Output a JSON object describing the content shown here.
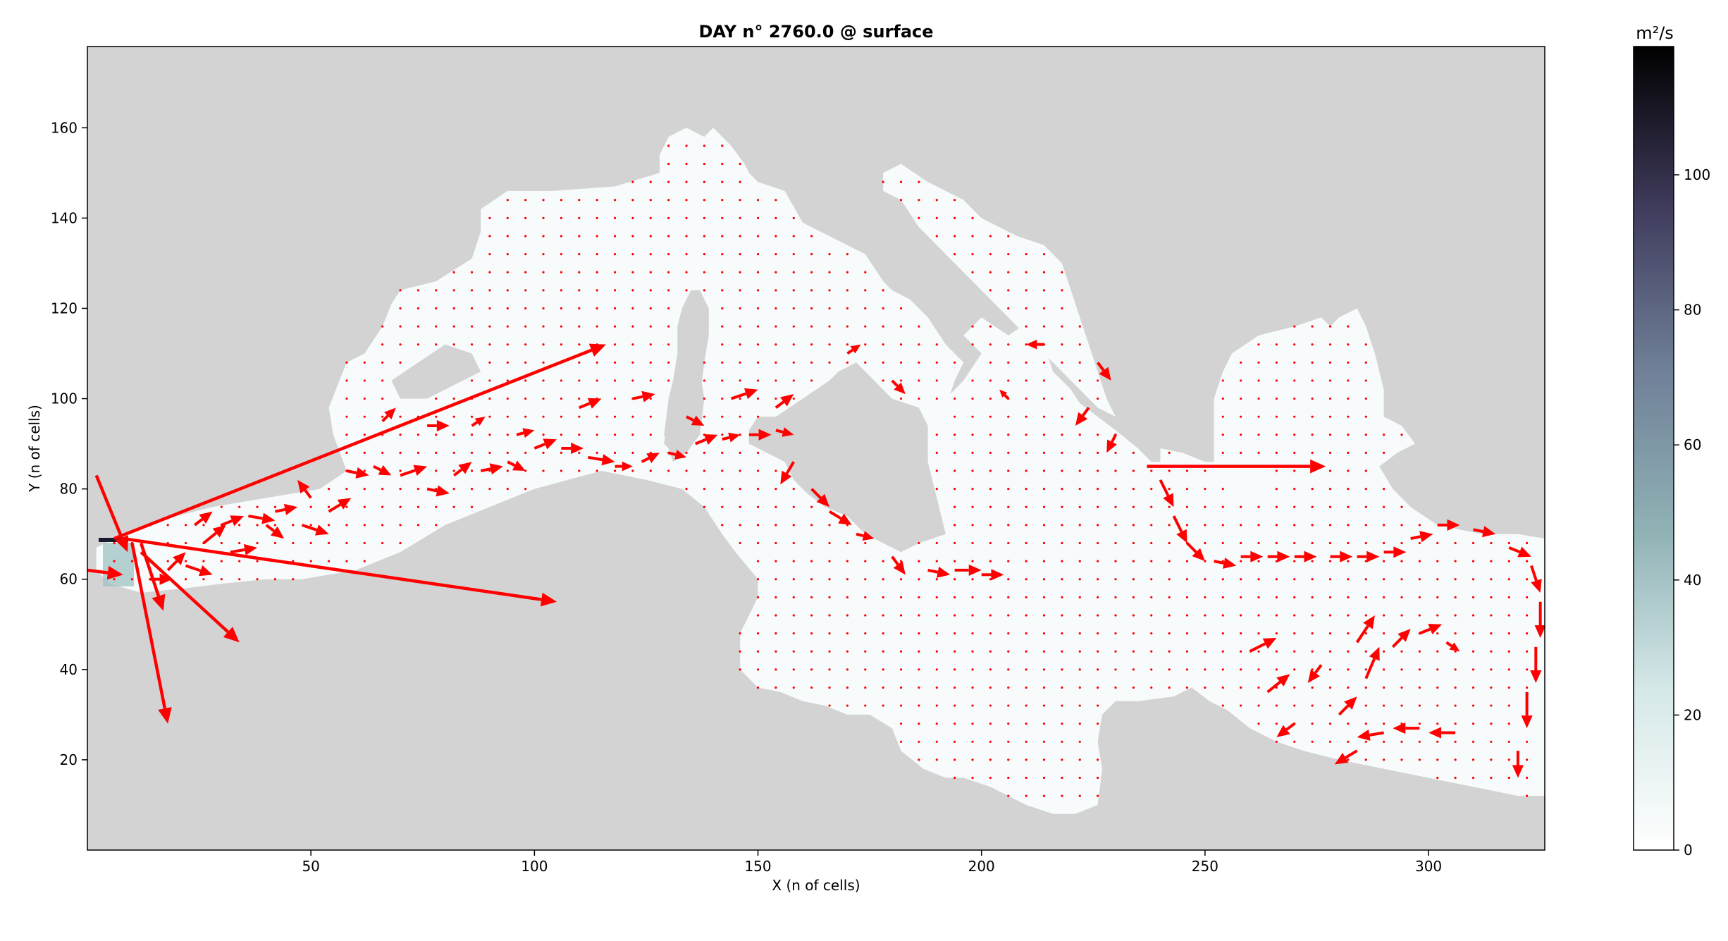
{
  "chart_data": [
    {
      "type": "heatmap",
      "overlay": "quiver",
      "title": "DAY n° 2760.0 @ surface",
      "xlabel": "X (n of cells)",
      "ylabel": "Y (n of cells)",
      "xlim": [
        0,
        326
      ],
      "ylim": [
        0,
        178
      ],
      "xticks": [
        50,
        100,
        150,
        200,
        250,
        300
      ],
      "yticks": [
        20,
        40,
        60,
        80,
        100,
        120,
        140,
        160
      ],
      "land_color": "#d3d3d3",
      "sea_color": "#f7fbfb",
      "arrow_color": "#ff0000",
      "colormap": "bone_r",
      "colorbar": {
        "label": "m²/s",
        "ticks": [
          0,
          20,
          40,
          60,
          80,
          100
        ],
        "range": [
          0,
          119
        ]
      },
      "grid": false,
      "sea_outline": [
        [
          2,
          67
        ],
        [
          8,
          70
        ],
        [
          16,
          73
        ],
        [
          28,
          76
        ],
        [
          40,
          78
        ],
        [
          52,
          80
        ],
        [
          58,
          84
        ],
        [
          55,
          92
        ],
        [
          54,
          98
        ],
        [
          56,
          103
        ],
        [
          58,
          108
        ],
        [
          62,
          110
        ],
        [
          66,
          116
        ],
        [
          68,
          121
        ],
        [
          70,
          124
        ],
        [
          78,
          126
        ],
        [
          86,
          131
        ],
        [
          88,
          137
        ],
        [
          88,
          142
        ],
        [
          94,
          146
        ],
        [
          104,
          146
        ],
        [
          118,
          147
        ],
        [
          128,
          150
        ],
        [
          128,
          154
        ],
        [
          130,
          158
        ],
        [
          134,
          160
        ],
        [
          138,
          158
        ],
        [
          140,
          160
        ],
        [
          144,
          156
        ],
        [
          147,
          152
        ],
        [
          148,
          150
        ],
        [
          150,
          148
        ],
        [
          156,
          146
        ],
        [
          160,
          139
        ],
        [
          166,
          136
        ],
        [
          174,
          132
        ],
        [
          178,
          126
        ],
        [
          180,
          124
        ],
        [
          184,
          122
        ],
        [
          188,
          118
        ],
        [
          192,
          112
        ],
        [
          196,
          108
        ],
        [
          194,
          104
        ],
        [
          192,
          98
        ],
        [
          190,
          94
        ],
        [
          188,
          94
        ],
        [
          186,
          98
        ],
        [
          180,
          100
        ],
        [
          176,
          104
        ],
        [
          172,
          108
        ],
        [
          168,
          106
        ],
        [
          166,
          104
        ],
        [
          160,
          100
        ],
        [
          154,
          96
        ],
        [
          150,
          96
        ],
        [
          148,
          93
        ],
        [
          148,
          90
        ],
        [
          152,
          88
        ],
        [
          156,
          86
        ],
        [
          158,
          82
        ],
        [
          161,
          79
        ],
        [
          165,
          76
        ],
        [
          170,
          74
        ],
        [
          174,
          70
        ],
        [
          178,
          68
        ],
        [
          182,
          66
        ],
        [
          186,
          68
        ],
        [
          192,
          70
        ],
        [
          190,
          78
        ],
        [
          188,
          86
        ],
        [
          188,
          96
        ],
        [
          192,
          100
        ],
        [
          196,
          104
        ],
        [
          200,
          110
        ],
        [
          196,
          114
        ],
        [
          200,
          118
        ],
        [
          206,
          114
        ],
        [
          212,
          118
        ],
        [
          214,
          112
        ],
        [
          216,
          106
        ],
        [
          220,
          102
        ],
        [
          222,
          99
        ],
        [
          226,
          96
        ],
        [
          230,
          93
        ],
        [
          235,
          89
        ],
        [
          238,
          86
        ],
        [
          240,
          86
        ],
        [
          240,
          89
        ],
        [
          245,
          88
        ],
        [
          250,
          86
        ],
        [
          256,
          86
        ],
        [
          262,
          88
        ],
        [
          266,
          88
        ],
        [
          264,
          84
        ],
        [
          266,
          80
        ],
        [
          263,
          78
        ],
        [
          258,
          80
        ],
        [
          256,
          84
        ],
        [
          252,
          84
        ],
        [
          252,
          100
        ],
        [
          254,
          106
        ],
        [
          256,
          110
        ],
        [
          262,
          114
        ],
        [
          270,
          116
        ],
        [
          276,
          118
        ],
        [
          278,
          116
        ],
        [
          280,
          118
        ],
        [
          284,
          120
        ],
        [
          286,
          116
        ],
        [
          288,
          110
        ],
        [
          290,
          102
        ],
        [
          290,
          96
        ],
        [
          294,
          94
        ],
        [
          297,
          90
        ],
        [
          293,
          88
        ],
        [
          289,
          85
        ],
        [
          292,
          80
        ],
        [
          296,
          76
        ],
        [
          302,
          72
        ],
        [
          312,
          70
        ],
        [
          320,
          70
        ],
        [
          326,
          69
        ],
        [
          326,
          12
        ],
        [
          320,
          12
        ],
        [
          310,
          14
        ],
        [
          300,
          16
        ],
        [
          290,
          18
        ],
        [
          280,
          20
        ],
        [
          272,
          22
        ],
        [
          266,
          24
        ],
        [
          260,
          27
        ],
        [
          255,
          31
        ],
        [
          251,
          33
        ],
        [
          247,
          36
        ],
        [
          243,
          34
        ],
        [
          235,
          33
        ],
        [
          230,
          33
        ],
        [
          227,
          30
        ],
        [
          226,
          24
        ],
        [
          227,
          18
        ],
        [
          226,
          10
        ],
        [
          221,
          8
        ],
        [
          216,
          8
        ],
        [
          210,
          10
        ],
        [
          202,
          14
        ],
        [
          196,
          16
        ],
        [
          192,
          16
        ],
        [
          187,
          18
        ],
        [
          182,
          22
        ],
        [
          180,
          27
        ],
        [
          175,
          30
        ],
        [
          170,
          30
        ],
        [
          165,
          32
        ],
        [
          160,
          33
        ],
        [
          155,
          35
        ],
        [
          150,
          36
        ],
        [
          146,
          40
        ],
        [
          146,
          48
        ],
        [
          150,
          56
        ],
        [
          150,
          60
        ],
        [
          145,
          66
        ],
        [
          142,
          70
        ],
        [
          138,
          76
        ],
        [
          133,
          80
        ],
        [
          125,
          82
        ],
        [
          115,
          84
        ],
        [
          100,
          80
        ],
        [
          90,
          76
        ],
        [
          80,
          72
        ],
        [
          70,
          66
        ],
        [
          60,
          62
        ],
        [
          48,
          60
        ],
        [
          40,
          60
        ],
        [
          30,
          59
        ],
        [
          22,
          58
        ],
        [
          12,
          57
        ],
        [
          5,
          59
        ],
        [
          2,
          62
        ]
      ],
      "adriatic_outline": [
        [
          178,
          150
        ],
        [
          182,
          152
        ],
        [
          188,
          148
        ],
        [
          196,
          144
        ],
        [
          200,
          140
        ],
        [
          208,
          136
        ],
        [
          214,
          134
        ],
        [
          218,
          130
        ],
        [
          220,
          124
        ],
        [
          222,
          118
        ],
        [
          224,
          112
        ],
        [
          226,
          106
        ],
        [
          228,
          100
        ],
        [
          230,
          96
        ],
        [
          226,
          98
        ],
        [
          222,
          102
        ],
        [
          216,
          108
        ],
        [
          210,
          114
        ],
        [
          204,
          120
        ],
        [
          198,
          126
        ],
        [
          192,
          132
        ],
        [
          186,
          138
        ],
        [
          182,
          144
        ],
        [
          178,
          146
        ]
      ],
      "corsica_outline": [
        [
          129,
          90
        ],
        [
          130,
          98
        ],
        [
          131,
          104
        ],
        [
          132,
          110
        ],
        [
          132,
          116
        ],
        [
          133,
          120
        ],
        [
          135,
          124
        ],
        [
          137,
          124
        ],
        [
          139,
          120
        ],
        [
          139,
          114
        ],
        [
          138,
          108
        ],
        [
          137,
          100
        ],
        [
          136,
          94
        ],
        [
          134,
          90
        ],
        [
          131,
          88
        ]
      ],
      "sardinia_outline": [
        [
          131,
          86
        ],
        [
          134,
          88
        ],
        [
          137,
          92
        ],
        [
          138,
          100
        ],
        [
          137,
          106
        ],
        [
          135,
          110
        ],
        [
          132,
          108
        ],
        [
          130,
          100
        ],
        [
          129,
          92
        ]
      ],
      "balearic_outline": [
        [
          68,
          104
        ],
        [
          74,
          108
        ],
        [
          80,
          112
        ],
        [
          86,
          110
        ],
        [
          88,
          106
        ],
        [
          82,
          103
        ],
        [
          76,
          100
        ],
        [
          70,
          100
        ]
      ],
      "arrows_long": [
        {
          "x": 6,
          "y": 69,
          "u": 110,
          "v": 43
        },
        {
          "x": 8,
          "y": 69,
          "u": 97,
          "v": -14
        },
        {
          "x": 10,
          "y": 68,
          "u": 8,
          "v": -40
        },
        {
          "x": 12,
          "y": 66,
          "u": 22,
          "v": -20
        },
        {
          "x": 237,
          "y": 85,
          "u": 40,
          "v": 0
        },
        {
          "x": 2,
          "y": 83,
          "u": 7,
          "v": -17
        },
        {
          "x": 0,
          "y": 62,
          "u": 8,
          "v": -1
        },
        {
          "x": 12,
          "y": 68,
          "u": 5,
          "v": -15
        }
      ],
      "arrows_jet": [
        [
          14,
          60,
          5,
          0
        ],
        [
          22,
          63,
          6,
          -2
        ],
        [
          26,
          68,
          5,
          4
        ],
        [
          30,
          72,
          5,
          2
        ],
        [
          36,
          74,
          6,
          -1
        ],
        [
          42,
          75,
          5,
          1
        ],
        [
          48,
          72,
          6,
          -2
        ],
        [
          54,
          75,
          5,
          3
        ],
        [
          58,
          84,
          5,
          -1
        ],
        [
          64,
          85,
          4,
          -2
        ],
        [
          70,
          83,
          6,
          2
        ],
        [
          76,
          80,
          5,
          -1
        ],
        [
          82,
          83,
          4,
          3
        ],
        [
          88,
          84,
          5,
          1
        ],
        [
          94,
          86,
          4,
          -2
        ],
        [
          100,
          89,
          5,
          2
        ],
        [
          106,
          89,
          5,
          0
        ],
        [
          112,
          87,
          6,
          -1
        ],
        [
          118,
          85,
          4,
          0
        ],
        [
          124,
          86,
          4,
          2
        ],
        [
          130,
          88,
          4,
          -1
        ],
        [
          136,
          90,
          5,
          2
        ],
        [
          142,
          91,
          4,
          1
        ],
        [
          148,
          92,
          5,
          0
        ],
        [
          154,
          93,
          4,
          -1
        ],
        [
          158,
          86,
          -3,
          -5
        ],
        [
          162,
          80,
          4,
          -4
        ],
        [
          166,
          75,
          5,
          -3
        ],
        [
          172,
          70,
          4,
          -1
        ],
        [
          180,
          65,
          3,
          -4
        ],
        [
          188,
          62,
          5,
          -1
        ],
        [
          194,
          62,
          6,
          0
        ],
        [
          200,
          61,
          5,
          0
        ],
        [
          240,
          82,
          3,
          -6
        ],
        [
          243,
          74,
          3,
          -6
        ],
        [
          246,
          68,
          4,
          -4
        ],
        [
          252,
          64,
          5,
          -1
        ],
        [
          258,
          65,
          5,
          0
        ],
        [
          264,
          65,
          5,
          0
        ],
        [
          270,
          65,
          5,
          0
        ],
        [
          278,
          65,
          5,
          0
        ],
        [
          284,
          65,
          5,
          0
        ],
        [
          290,
          66,
          5,
          0
        ],
        [
          296,
          69,
          5,
          1
        ],
        [
          302,
          72,
          5,
          0
        ],
        [
          310,
          71,
          5,
          -1
        ],
        [
          318,
          67,
          5,
          -2
        ],
        [
          323,
          63,
          2,
          -6
        ],
        [
          325,
          55,
          0,
          -8
        ],
        [
          324,
          45,
          0,
          -8
        ],
        [
          322,
          35,
          0,
          -8
        ],
        [
          320,
          22,
          0,
          -6
        ],
        [
          306,
          26,
          -6,
          0
        ],
        [
          298,
          27,
          -6,
          0
        ],
        [
          290,
          26,
          -6,
          -1
        ],
        [
          284,
          22,
          -5,
          -3
        ],
        [
          280,
          30,
          4,
          4
        ],
        [
          286,
          38,
          3,
          7
        ],
        [
          292,
          45,
          4,
          4
        ],
        [
          298,
          48,
          5,
          2
        ],
        [
          304,
          46,
          3,
          -2
        ],
        [
          270,
          28,
          -4,
          -3
        ],
        [
          264,
          35,
          5,
          4
        ],
        [
          260,
          44,
          6,
          3
        ],
        [
          154,
          98,
          4,
          3
        ],
        [
          144,
          100,
          6,
          2
        ],
        [
          134,
          96,
          4,
          -2
        ],
        [
          122,
          100,
          5,
          1
        ],
        [
          110,
          98,
          5,
          2
        ],
        [
          96,
          92,
          4,
          1
        ],
        [
          86,
          94,
          3,
          2
        ],
        [
          76,
          94,
          5,
          0
        ],
        [
          66,
          95,
          3,
          3
        ],
        [
          50,
          78,
          -3,
          4
        ],
        [
          40,
          72,
          4,
          -3
        ],
        [
          32,
          66,
          6,
          1
        ],
        [
          24,
          72,
          4,
          3
        ],
        [
          18,
          62,
          4,
          4
        ],
        [
          284,
          46,
          4,
          6
        ],
        [
          276,
          41,
          -3,
          -4
        ],
        [
          226,
          108,
          3,
          -4
        ],
        [
          224,
          98,
          -3,
          -4
        ],
        [
          230,
          92,
          -2,
          -4
        ],
        [
          214,
          112,
          -4,
          0
        ],
        [
          206,
          100,
          -2,
          2
        ],
        [
          180,
          104,
          3,
          -3
        ],
        [
          170,
          110,
          3,
          2
        ]
      ]
    }
  ]
}
